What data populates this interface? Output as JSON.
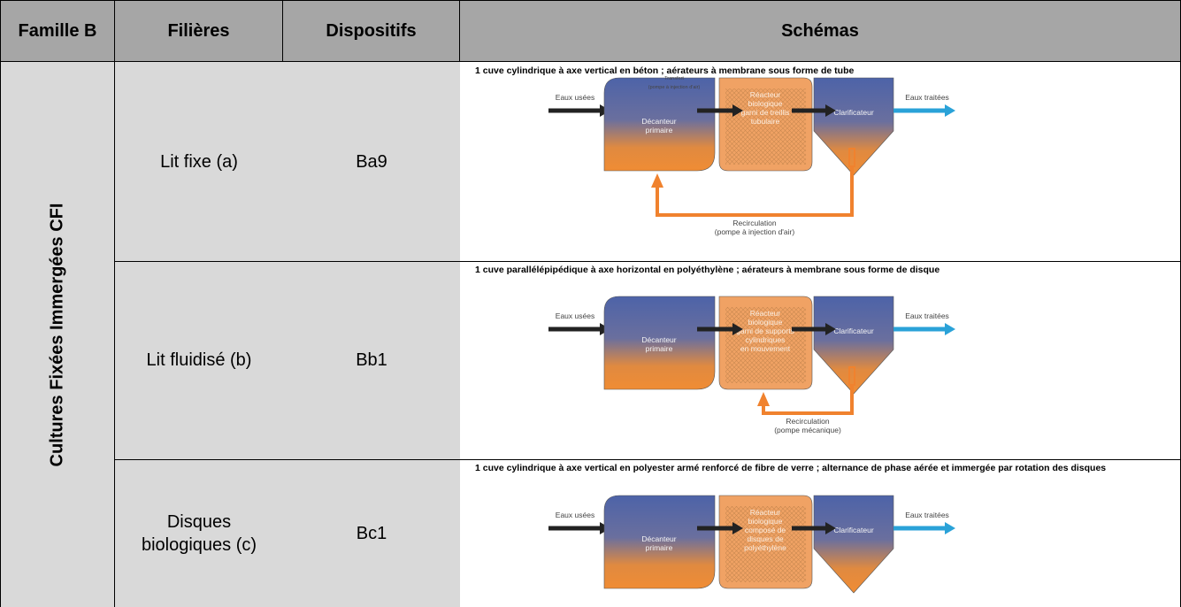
{
  "table": {
    "header": [
      "Famille B",
      "Filières",
      "Dispositifs",
      "Schémas"
    ],
    "group": "Cultures Fixées Immergées CFI",
    "rows": [
      {
        "filiere": "Lit fixe (a)",
        "dispositif": "Ba9",
        "schema": {
          "caption": "1 cuve cylindrique à axe vertical en béton ; aérateurs à membrane sous forme de tube",
          "inflow": "Eaux usées",
          "transfer": [
            "Transfert",
            "(pompe à injection d'air)"
          ],
          "primary": [
            "Décanteur",
            "primaire"
          ],
          "reactor": [
            "Réacteur",
            "biologique",
            "garni de treillis",
            "tubulaire"
          ],
          "clarifier": "Clarificateur",
          "outflow": "Eaux traitées",
          "recirculation": [
            "Recirculation",
            "(pompe à injection d'air)"
          ]
        }
      },
      {
        "filiere": "Lit fluidisé (b)",
        "dispositif": "Bb1",
        "schema": {
          "caption": "1 cuve parallélépipédique à axe horizontal en polyéthylène ; aérateurs à membrane sous forme de disque",
          "inflow": "Eaux usées",
          "primary": [
            "Décanteur",
            "primaire"
          ],
          "reactor": [
            "Réacteur",
            "biologique",
            "garni de supports",
            "cylindriques",
            "en mouvement"
          ],
          "clarifier": "Clarificateur",
          "outflow": "Eaux traitées",
          "recirculation": [
            "Recirculation",
            "(pompe mécanique)"
          ]
        }
      },
      {
        "filiere": "Disques biologiques (c)",
        "dispositif": "Bc1",
        "schema": {
          "caption": "1 cuve cylindrique à axe vertical en polyester armé renforcé de fibre de verre ; alternance de phase aérée et immergée par rotation des disques",
          "inflow": "Eaux usées",
          "primary": [
            "Décanteur",
            "primaire"
          ],
          "reactor": [
            "Réacteur",
            "biologique",
            "composé de",
            "disques de",
            "polyéthylène"
          ],
          "clarifier": "Clarificateur",
          "outflow": "Eaux traitées"
        }
      }
    ]
  }
}
